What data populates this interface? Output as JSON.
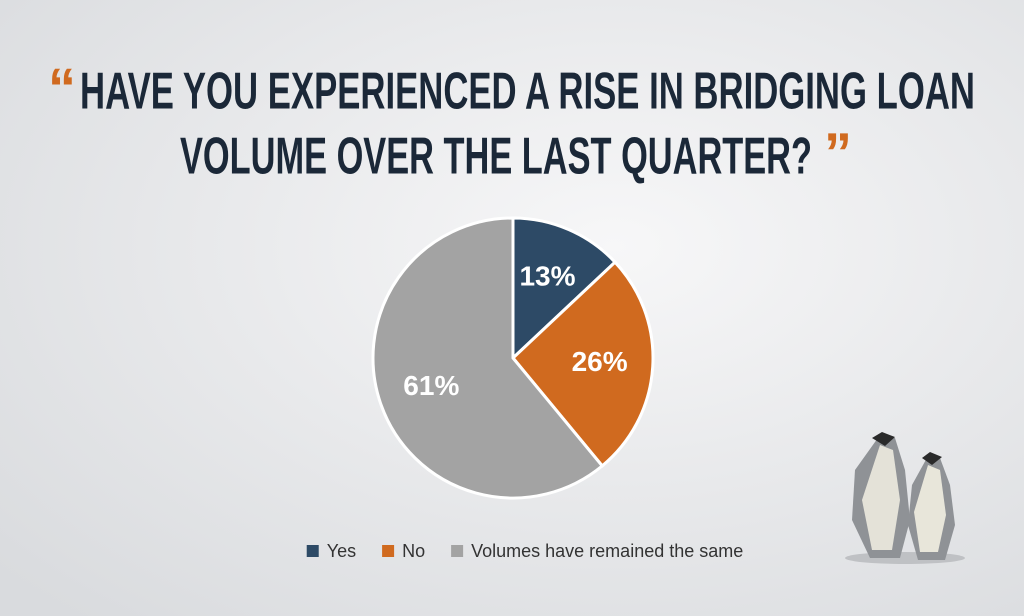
{
  "chart_data": {
    "type": "pie",
    "open_quote": "“",
    "close_quote": "”",
    "title": [
      "HAVE YOU EXPERIENCED A RISE IN BRIDGING LOAN",
      "VOLUME OVER THE LAST QUARTER?"
    ],
    "categories": [
      "Yes",
      "No",
      "Volumes have remained the same"
    ],
    "values": [
      13,
      26,
      61
    ],
    "value_labels": [
      "13%",
      "26%",
      "61%"
    ],
    "colors": [
      "#2d4a66",
      "#d06a1f",
      "#a3a3a3"
    ],
    "legend": "bottom"
  }
}
